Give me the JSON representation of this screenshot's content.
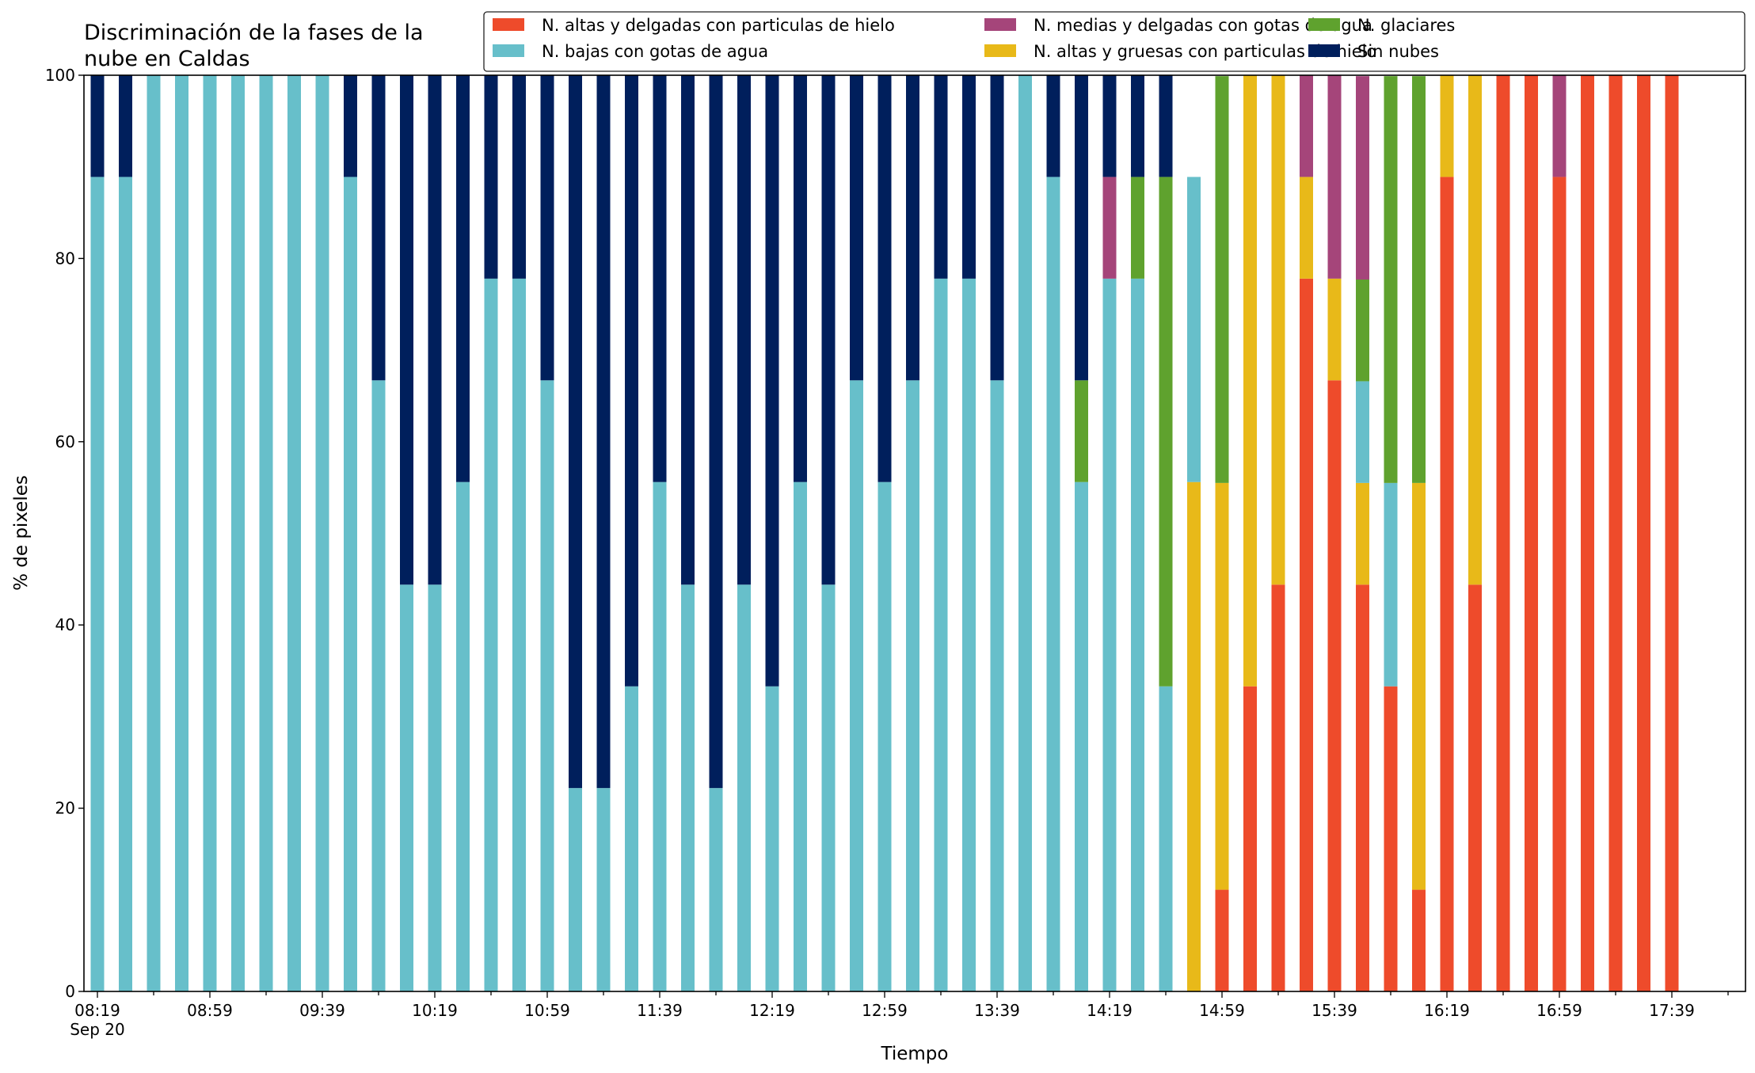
{
  "chart_data": {
    "type": "bar",
    "stacked": true,
    "title": "Discriminación de la fases de la\nnube en Caldas",
    "xlabel": "Tiempo",
    "ylabel": "% de pixeles",
    "ylim": [
      0,
      100
    ],
    "y_ticks": [
      0,
      20,
      40,
      60,
      80,
      100
    ],
    "x_tick_labels": [
      "08:19\nSep 20",
      "08:59",
      "09:39",
      "10:19",
      "10:59",
      "11:39",
      "12:19",
      "12:59",
      "13:39",
      "14:19",
      "14:59",
      "15:39",
      "16:19",
      "16:59",
      "17:39"
    ],
    "grid": false,
    "legend_position": "top-right",
    "categories": [
      "08:19",
      "08:29",
      "08:39",
      "08:49",
      "08:59",
      "09:09",
      "09:19",
      "09:29",
      "09:39",
      "09:49",
      "09:59",
      "10:09",
      "10:19",
      "10:29",
      "10:39",
      "10:49",
      "10:59",
      "11:09",
      "11:19",
      "11:29",
      "11:39",
      "11:49",
      "11:59",
      "12:09",
      "12:19",
      "12:29",
      "12:39",
      "12:49",
      "12:59",
      "13:09",
      "13:19",
      "13:29",
      "13:39",
      "13:49",
      "13:59",
      "14:09",
      "14:19",
      "14:29",
      "14:39",
      "14:49",
      "14:59",
      "15:09",
      "15:19",
      "15:29",
      "15:39",
      "15:49",
      "15:59",
      "16:09",
      "16:19",
      "16:29",
      "16:39",
      "16:49",
      "16:59",
      "17:09",
      "17:19",
      "17:29",
      "17:39",
      "17:49",
      "17:59"
    ],
    "series": [
      {
        "name": "N. altas y delgadas con particulas de hielo",
        "color": "#ee4b2b",
        "values": [
          0,
          0,
          0,
          0,
          0,
          0,
          0,
          0,
          0,
          0,
          0,
          0,
          0,
          0,
          0,
          0,
          0,
          0,
          0,
          0,
          0,
          0,
          0,
          0,
          0,
          0,
          0,
          0,
          0,
          0,
          0,
          0,
          0,
          0,
          0,
          0,
          0,
          0,
          0,
          0,
          11.1,
          33.3,
          44.4,
          77.8,
          66.7,
          44.4,
          33.3,
          11.1,
          88.9,
          44.4,
          100,
          100,
          88.9,
          100,
          100,
          100,
          100,
          0,
          0
        ]
      },
      {
        "name": "N. altas y gruesas con particulas de hielo",
        "color": "#e8b919",
        "values": [
          0,
          0,
          0,
          0,
          0,
          0,
          0,
          0,
          0,
          0,
          0,
          0,
          0,
          0,
          0,
          0,
          0,
          0,
          0,
          0,
          0,
          0,
          0,
          0,
          0,
          0,
          0,
          0,
          0,
          0,
          0,
          0,
          0,
          0,
          0,
          0,
          0,
          0,
          0,
          55.6,
          44.4,
          66.7,
          55.6,
          11.1,
          11.1,
          11.1,
          0,
          44.4,
          11.1,
          55.6,
          0,
          0,
          0,
          0,
          0,
          0,
          0,
          0,
          0
        ]
      },
      {
        "name": "N. bajas con gotas de agua",
        "color": "#67bfca",
        "values": [
          88.9,
          88.9,
          100,
          100,
          100,
          100,
          100,
          100,
          100,
          88.9,
          66.7,
          44.4,
          44.4,
          55.6,
          77.8,
          77.8,
          66.7,
          22.2,
          22.2,
          33.3,
          55.6,
          44.4,
          22.2,
          44.4,
          33.3,
          55.6,
          44.4,
          66.7,
          55.6,
          66.7,
          77.8,
          77.8,
          66.7,
          100,
          88.9,
          55.6,
          77.8,
          77.8,
          33.3,
          33.3,
          0,
          0,
          0,
          0,
          0,
          11.1,
          22.2,
          0,
          0,
          0,
          0,
          0,
          0,
          0,
          0,
          0,
          0,
          0,
          0
        ]
      },
      {
        "name": "N. glaciares",
        "color": "#5fa22e",
        "values": [
          0,
          0,
          0,
          0,
          0,
          0,
          0,
          0,
          0,
          0,
          0,
          0,
          0,
          0,
          0,
          0,
          0,
          0,
          0,
          0,
          0,
          0,
          0,
          0,
          0,
          0,
          0,
          0,
          0,
          0,
          0,
          0,
          0,
          0,
          0,
          11.1,
          0,
          11.1,
          55.6,
          0,
          44.4,
          0,
          0,
          0,
          0,
          11.1,
          44.4,
          44.4,
          0,
          0,
          0,
          0,
          0,
          0,
          0,
          0,
          0,
          0,
          0
        ]
      },
      {
        "name": "N. medias y delgadas con gotas de agua",
        "color": "#a5457a",
        "values": [
          0,
          0,
          0,
          0,
          0,
          0,
          0,
          0,
          0,
          0,
          0,
          0,
          0,
          0,
          0,
          0,
          0,
          0,
          0,
          0,
          0,
          0,
          0,
          0,
          0,
          0,
          0,
          0,
          0,
          0,
          0,
          0,
          0,
          0,
          0,
          0,
          11.1,
          0,
          0,
          0,
          0,
          0,
          0,
          11.1,
          22.2,
          22.2,
          0,
          0,
          0,
          0,
          0,
          0,
          11.1,
          0,
          0,
          0,
          0,
          0,
          0
        ]
      },
      {
        "name": "Sin nubes",
        "color": "#001f5c",
        "values": [
          11.1,
          11.1,
          0,
          0,
          0,
          0,
          0,
          0,
          0,
          11.1,
          33.3,
          55.6,
          55.6,
          44.4,
          22.2,
          22.2,
          33.3,
          77.8,
          77.8,
          66.7,
          44.4,
          55.6,
          77.8,
          55.6,
          66.7,
          44.4,
          55.6,
          33.3,
          44.4,
          33.3,
          22.2,
          22.2,
          33.3,
          0,
          11.1,
          33.3,
          11.1,
          11.1,
          11.1,
          0,
          0,
          0,
          0,
          0,
          0,
          0,
          0,
          0,
          0,
          0,
          0,
          0,
          0,
          0,
          0,
          0,
          0,
          0,
          0
        ]
      }
    ],
    "legend_order": [
      0,
      2,
      4,
      1,
      3,
      5
    ]
  }
}
